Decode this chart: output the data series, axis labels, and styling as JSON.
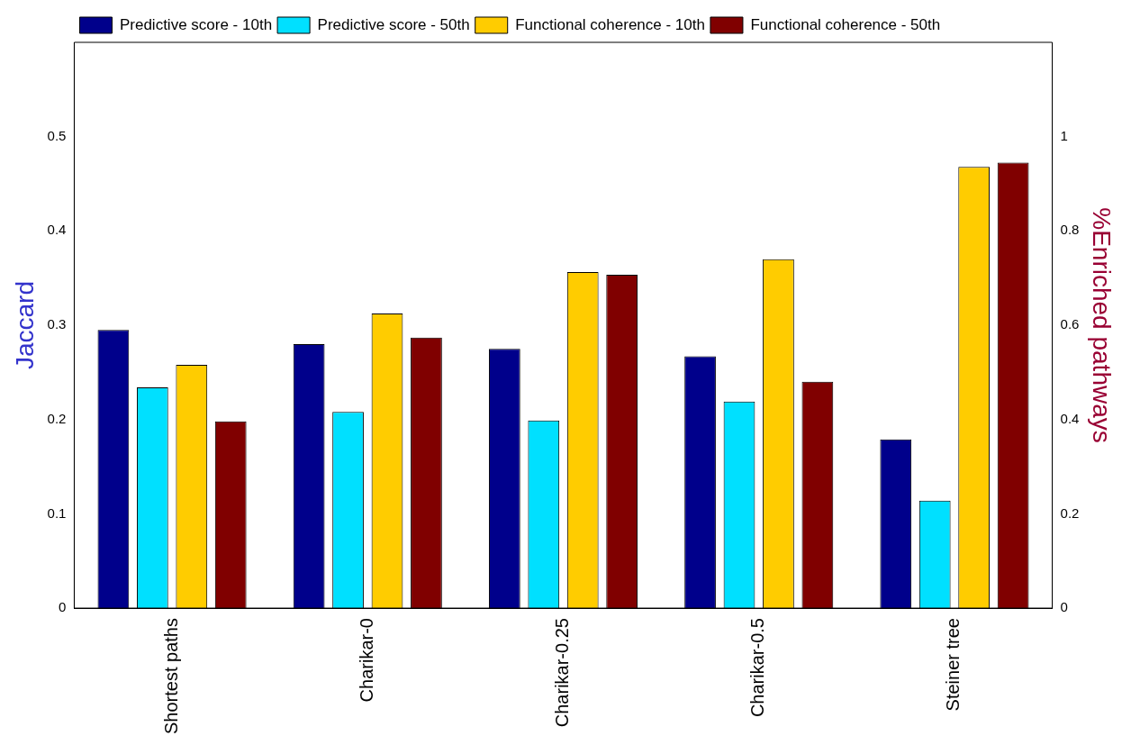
{
  "chart_data": {
    "type": "bar",
    "categories": [
      "Shortest paths",
      "Charikar-0",
      "Charikar-0.25",
      "Charikar-0.5",
      "Steiner tree"
    ],
    "series": [
      {
        "name": "Predictive score - 10th",
        "color": "#00008b",
        "values": [
          0.295,
          0.28,
          0.275,
          0.267,
          0.179
        ]
      },
      {
        "name": "Predictive score - 50th",
        "color": "#00e0ff",
        "values": [
          0.234,
          0.208,
          0.199,
          0.219,
          0.114
        ]
      },
      {
        "name": "Functional coherence - 10th",
        "color": "#ffcc00",
        "axis": "y2",
        "values": [
          0.516,
          0.625,
          0.713,
          0.74,
          0.936
        ]
      },
      {
        "name": "Functional coherence - 50th",
        "color": "#800000",
        "axis": "y2",
        "values": [
          0.396,
          0.574,
          0.707,
          0.48,
          0.945
        ]
      }
    ],
    "ylabel": "Jaccard",
    "y2label": "%Enriched pathways",
    "ylim": [
      0,
      0.6
    ],
    "yticks": [
      0,
      0.1,
      0.2,
      0.3,
      0.4,
      0.5
    ],
    "y2lim": [
      0,
      1.2
    ],
    "y2ticks": [
      0,
      0.2,
      0.4,
      0.6,
      0.8,
      1
    ],
    "legend": "top left",
    "grid": false
  }
}
